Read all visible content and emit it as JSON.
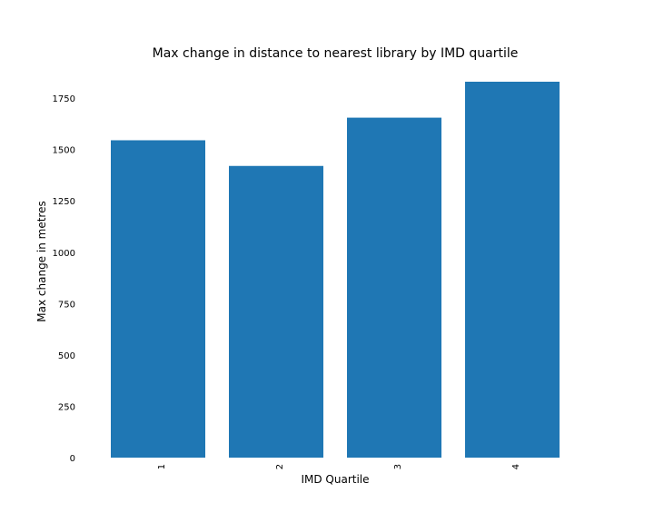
{
  "chart_data": {
    "type": "bar",
    "title": "Max change in distance to nearest library by IMD quartile",
    "xlabel": "IMD Quartile",
    "ylabel": "Max change in metres",
    "categories": [
      "1",
      "2",
      "3",
      "4"
    ],
    "values": [
      1545,
      1420,
      1655,
      1830
    ],
    "ylim": [
      0,
      1830
    ],
    "yticks": [
      0,
      250,
      500,
      750,
      1000,
      1250,
      1500,
      1750
    ],
    "xtick_rotation": "vertical",
    "grid": false,
    "legend": "none",
    "bar_color": "#1f77b4"
  }
}
